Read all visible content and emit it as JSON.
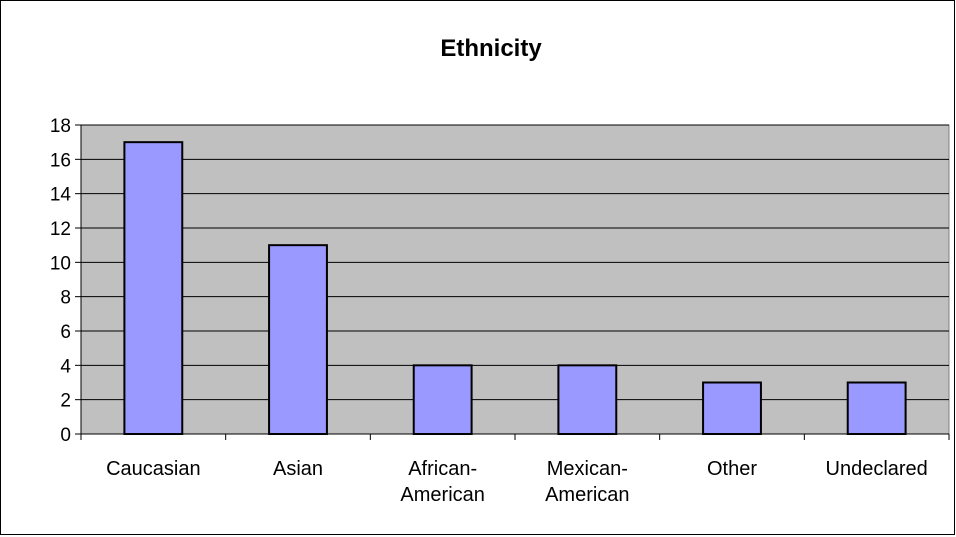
{
  "chart_data": {
    "type": "bar",
    "title": "Ethnicity",
    "categories": [
      "Caucasian",
      "Asian",
      "African-American",
      "Mexican-American",
      "Other",
      "Undeclared"
    ],
    "category_lines": [
      [
        "Caucasian"
      ],
      [
        "Asian"
      ],
      [
        "African-",
        "American"
      ],
      [
        "Mexican-",
        "American"
      ],
      [
        "Other"
      ],
      [
        "Undeclared"
      ]
    ],
    "values": [
      17,
      11,
      4,
      4,
      3,
      3
    ],
    "ylim": [
      0,
      18
    ],
    "yticks": [
      0,
      2,
      4,
      6,
      8,
      10,
      12,
      14,
      16,
      18
    ],
    "grid": true,
    "legend": "none",
    "colors": {
      "bar_fill": "#9999ff",
      "bar_stroke": "#000000",
      "plot_background": "#c0c0c0",
      "gridline": "#000000"
    }
  }
}
